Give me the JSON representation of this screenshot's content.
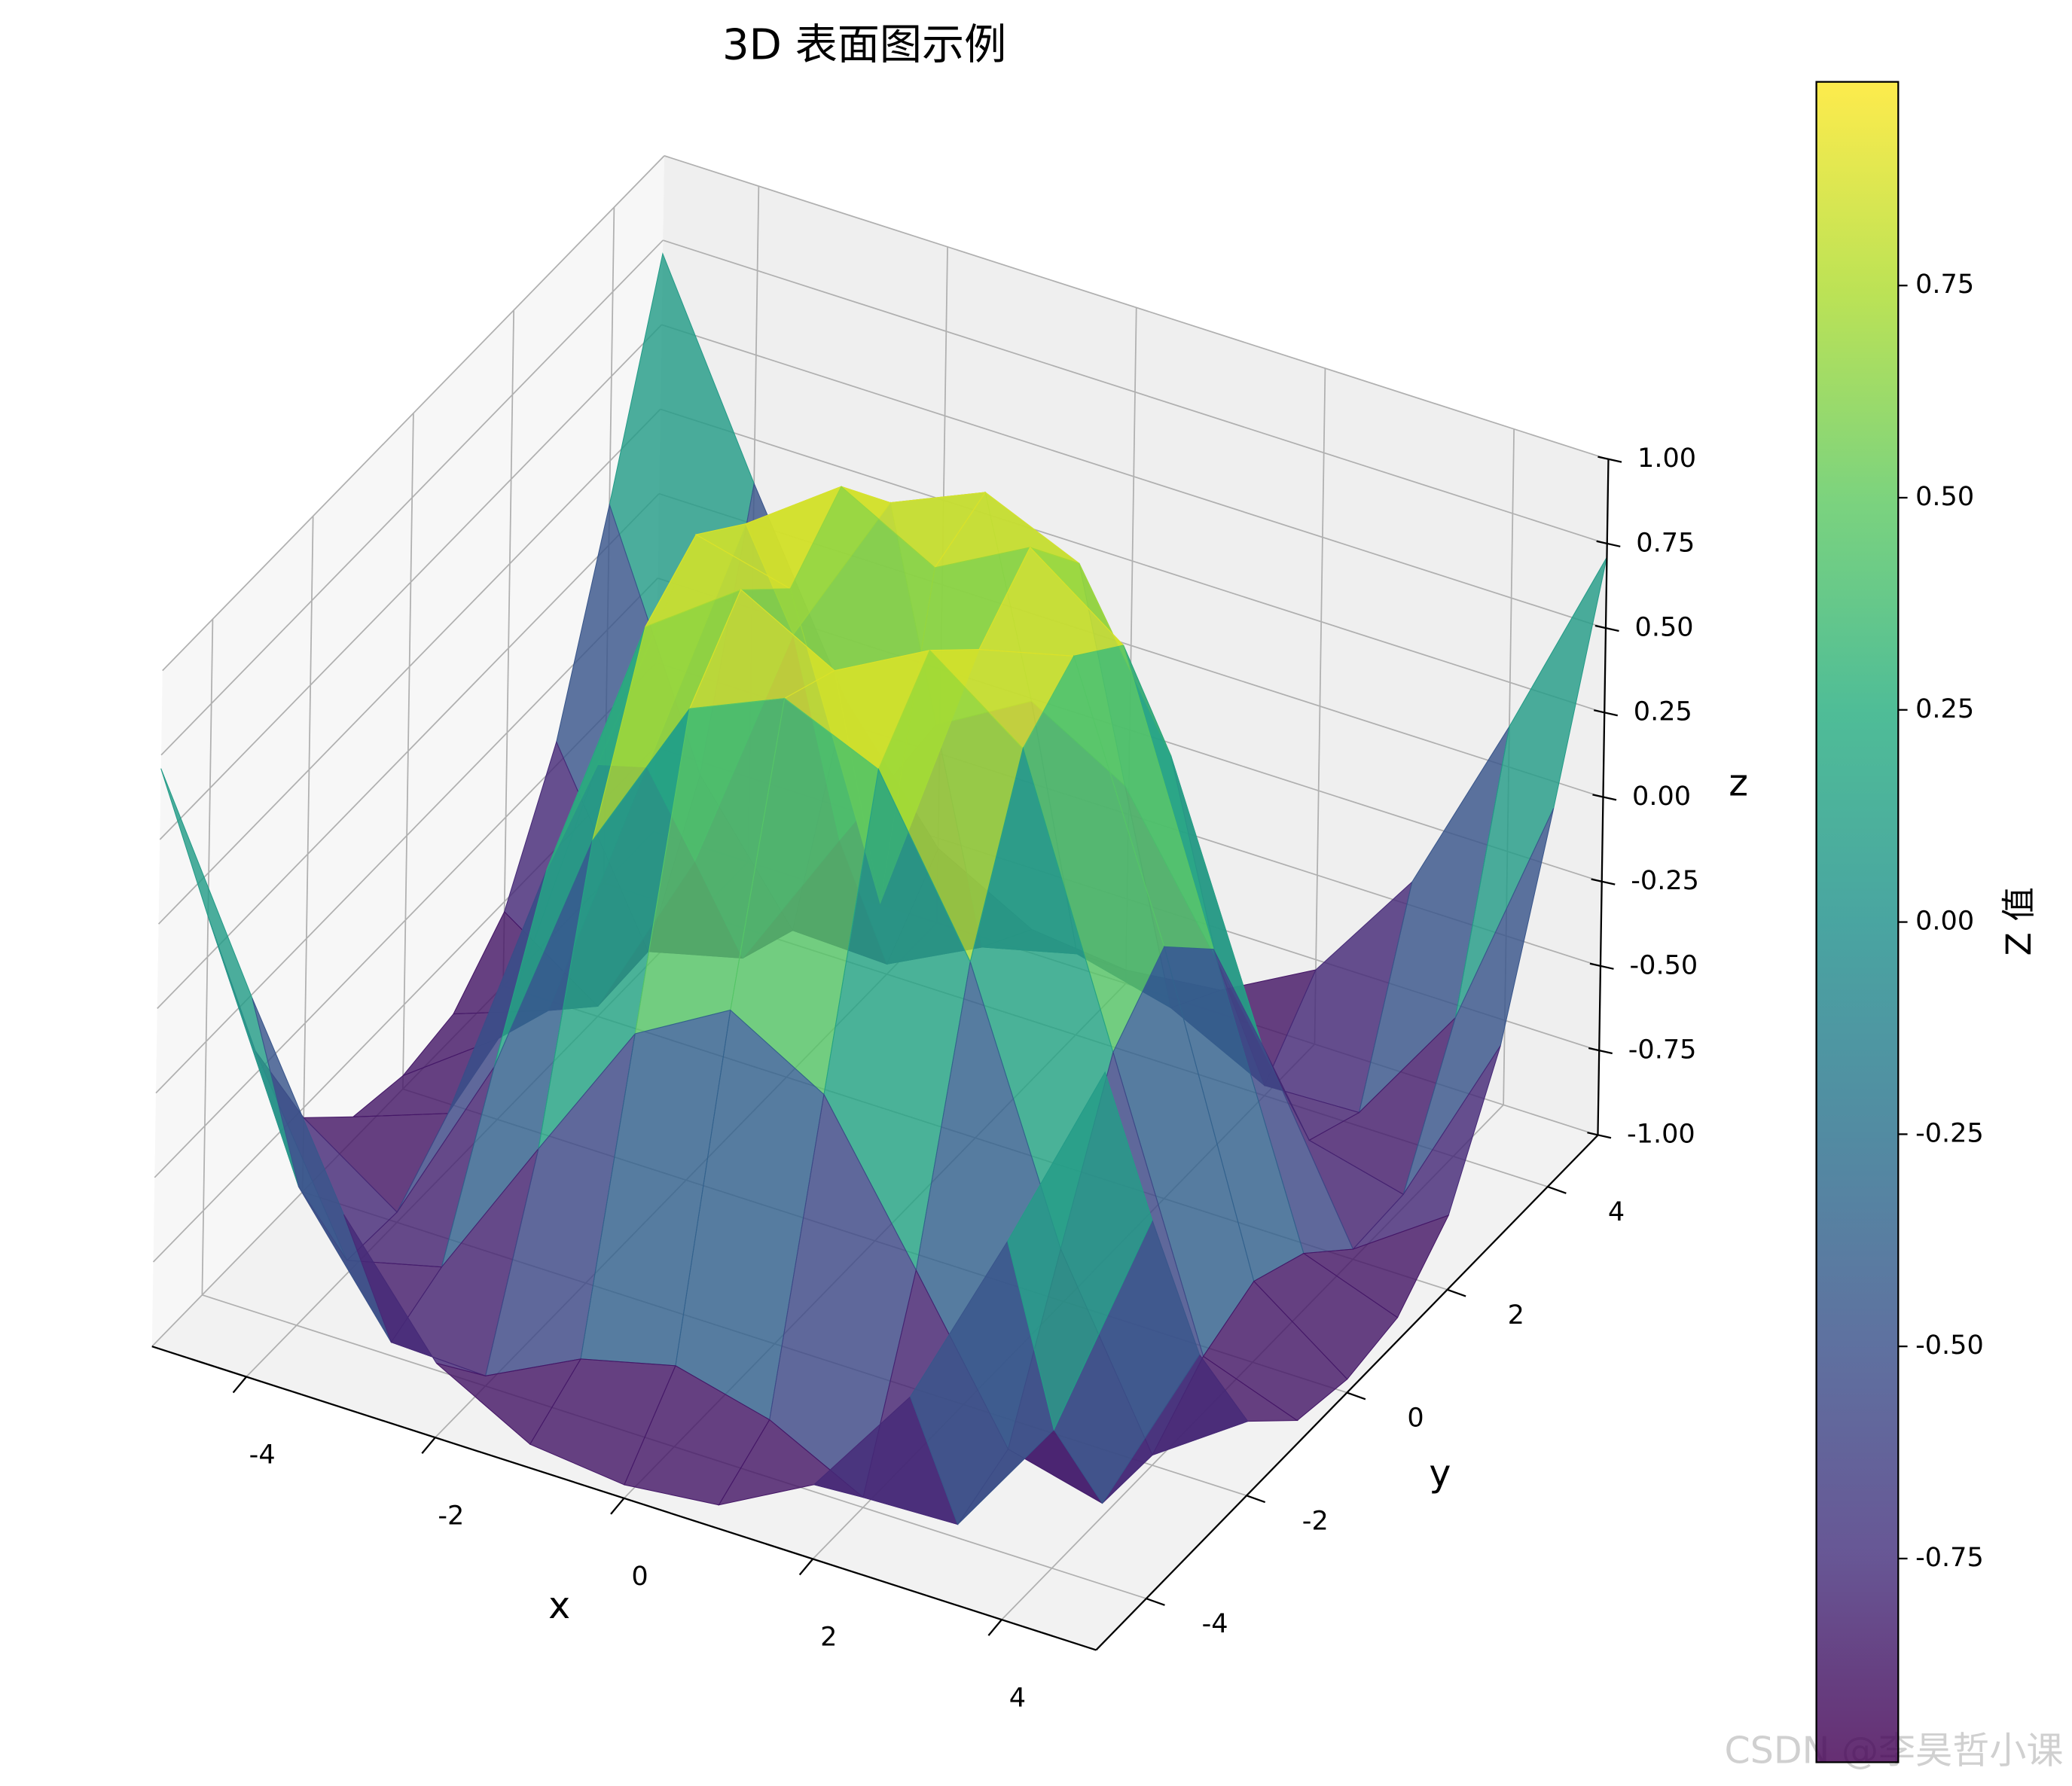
{
  "chart_data": {
    "type": "surface",
    "title": "3D 表面图示例",
    "x_label": "x",
    "y_label": "y",
    "z_label": "z",
    "colorbar_label": "Z 值",
    "watermark": "CSDN @李昊哲小课",
    "cmap": "viridis",
    "alpha": 0.82,
    "x": [
      -5,
      -4,
      -3,
      -2,
      -1,
      0,
      1,
      2,
      3,
      4,
      5
    ],
    "y": [
      -5,
      -4,
      -3,
      -2,
      -1,
      0,
      1,
      2,
      3,
      4,
      5
    ],
    "z": [
      [
        0.71,
        0.12,
        -0.43,
        -0.78,
        -0.93,
        -0.96,
        -0.93,
        -0.78,
        -0.43,
        0.12,
        0.71
      ],
      [
        0.12,
        -0.59,
        -0.96,
        -0.97,
        -0.83,
        -0.76,
        -0.83,
        -0.97,
        -0.96,
        -0.59,
        0.12
      ],
      [
        -0.43,
        -0.96,
        -0.89,
        -0.45,
        -0.02,
        0.14,
        -0.02,
        -0.45,
        -0.89,
        -0.96,
        -0.43
      ],
      [
        -0.78,
        -0.97,
        -0.45,
        0.31,
        0.79,
        0.91,
        0.79,
        0.31,
        -0.45,
        -0.97,
        -0.78
      ],
      [
        -0.93,
        -0.83,
        -0.02,
        0.79,
        0.99,
        0.84,
        0.99,
        0.79,
        -0.02,
        -0.83,
        -0.93
      ],
      [
        -0.96,
        -0.76,
        0.14,
        0.91,
        0.84,
        0,
        0.84,
        0.91,
        0.14,
        -0.76,
        -0.96
      ],
      [
        -0.93,
        -0.83,
        -0.02,
        0.79,
        0.99,
        0.84,
        0.99,
        0.79,
        -0.02,
        -0.83,
        -0.93
      ],
      [
        -0.78,
        -0.97,
        -0.45,
        0.31,
        0.79,
        0.91,
        0.79,
        0.31,
        -0.45,
        -0.97,
        -0.78
      ],
      [
        -0.43,
        -0.96,
        -0.89,
        -0.45,
        -0.02,
        0.14,
        -0.02,
        -0.45,
        -0.89,
        -0.96,
        -0.43
      ],
      [
        0.12,
        -0.59,
        -0.96,
        -0.97,
        -0.83,
        -0.76,
        -0.83,
        -0.97,
        -0.96,
        -0.59,
        0.12
      ],
      [
        0.71,
        0.12,
        -0.43,
        -0.78,
        -0.93,
        -0.96,
        -0.93,
        -0.78,
        -0.43,
        0.12,
        0.71
      ]
    ],
    "xlim": [
      -5,
      5
    ],
    "ylim": [
      -5,
      5
    ],
    "zlim": [
      -1,
      1
    ],
    "xticks": [
      -4,
      -2,
      0,
      2,
      4
    ],
    "yticks": [
      -4,
      -2,
      0,
      2,
      4
    ],
    "zticks": [
      {
        "value": -1,
        "label": "-1.00"
      },
      -0.75,
      {
        "value": -0.5,
        "label": "-0.50"
      },
      -0.25,
      {
        "value": 0,
        "label": "0.00"
      },
      0.25,
      {
        "value": 0.5,
        "label": "0.50"
      },
      0.75,
      {
        "value": 1,
        "label": "1.00"
      }
    ],
    "clim": [
      -0.99,
      0.99
    ],
    "cticks": [
      -0.75,
      {
        "value": -0.5,
        "label": "-0.50"
      },
      -0.25,
      {
        "value": 0,
        "label": "0.00"
      },
      0.25,
      {
        "value": 0.5,
        "label": "0.50"
      },
      0.75
    ],
    "grid": true
  }
}
